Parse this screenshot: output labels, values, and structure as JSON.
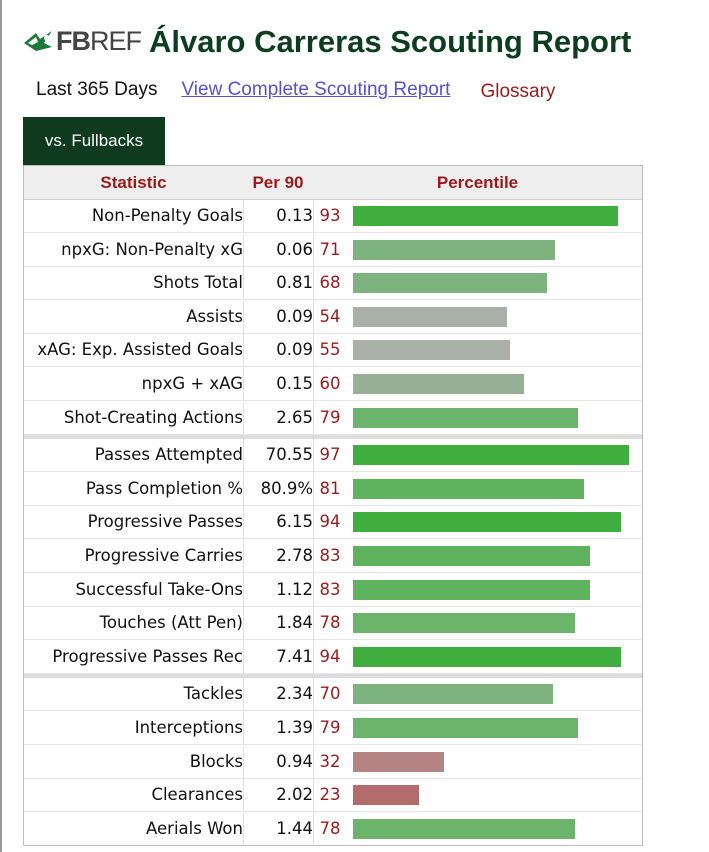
{
  "header": {
    "logo_text_bold": "FB",
    "logo_text_thin": "REF",
    "title": "Álvaro Carreras Scouting Report"
  },
  "subnav": {
    "period": "Last 365 Days",
    "complete_link": "View Complete Scouting Report",
    "glossary": "Glossary"
  },
  "tab": {
    "label": "vs. Fullbacks"
  },
  "colors": {
    "brand_dark_green": "#0e3a1e",
    "header_red": "#9b1b1b",
    "link_purple": "#5a4fcf"
  },
  "chart_data": {
    "type": "bar",
    "orientation": "horizontal",
    "columns": [
      "Statistic",
      "Per 90",
      "Percentile"
    ],
    "xlim": [
      0,
      100
    ],
    "groups": [
      {
        "rows": [
          {
            "stat": "Non-Penalty Goals",
            "per90": "0.13",
            "percentile": 93
          },
          {
            "stat": "npxG: Non-Penalty xG",
            "per90": "0.06",
            "percentile": 71
          },
          {
            "stat": "Shots Total",
            "per90": "0.81",
            "percentile": 68
          },
          {
            "stat": "Assists",
            "per90": "0.09",
            "percentile": 54
          },
          {
            "stat": "xAG: Exp. Assisted Goals",
            "per90": "0.09",
            "percentile": 55
          },
          {
            "stat": "npxG + xAG",
            "per90": "0.15",
            "percentile": 60
          },
          {
            "stat": "Shot-Creating Actions",
            "per90": "2.65",
            "percentile": 79
          }
        ]
      },
      {
        "rows": [
          {
            "stat": "Passes Attempted",
            "per90": "70.55",
            "percentile": 97
          },
          {
            "stat": "Pass Completion %",
            "per90": "80.9%",
            "percentile": 81
          },
          {
            "stat": "Progressive Passes",
            "per90": "6.15",
            "percentile": 94
          },
          {
            "stat": "Progressive Carries",
            "per90": "2.78",
            "percentile": 83
          },
          {
            "stat": "Successful Take-Ons",
            "per90": "1.12",
            "percentile": 83
          },
          {
            "stat": "Touches (Att Pen)",
            "per90": "1.84",
            "percentile": 78
          },
          {
            "stat": "Progressive Passes Rec",
            "per90": "7.41",
            "percentile": 94
          }
        ]
      },
      {
        "rows": [
          {
            "stat": "Tackles",
            "per90": "2.34",
            "percentile": 70
          },
          {
            "stat": "Interceptions",
            "per90": "1.39",
            "percentile": 79
          },
          {
            "stat": "Blocks",
            "per90": "0.94",
            "percentile": 32
          },
          {
            "stat": "Clearances",
            "per90": "2.02",
            "percentile": 23
          },
          {
            "stat": "Aerials Won",
            "per90": "1.44",
            "percentile": 78
          }
        ]
      }
    ]
  }
}
